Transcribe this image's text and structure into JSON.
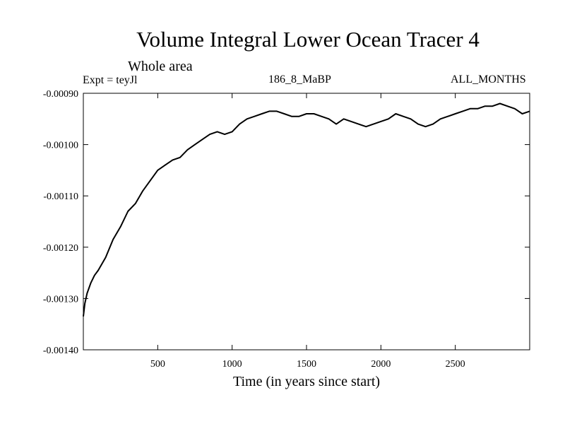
{
  "chart_data": {
    "type": "line",
    "title": "Volume Integral Lower Ocean Tracer 4",
    "subtitle": "Whole area",
    "experiment_label": "Expt = teyJl",
    "period_label": "186_8_MaBP",
    "months_label": "ALL_MONTHS",
    "xlabel": "Time (in years since start)",
    "ylabel": "",
    "xlim": [
      0,
      3000
    ],
    "ylim": [
      -0.0014,
      -0.0009
    ],
    "x_ticks": [
      500,
      1000,
      1500,
      2000,
      2500
    ],
    "x_tick_labels": [
      "500",
      "1000",
      "1500",
      "2000",
      "2500"
    ],
    "y_ticks": [
      -0.0009,
      -0.001,
      -0.0011,
      -0.0012,
      -0.0013,
      -0.0014
    ],
    "y_tick_labels": [
      "-0.00090",
      "-0.00100",
      "-0.00110",
      "-0.00120",
      "-0.00130",
      "-0.00140"
    ],
    "series": [
      {
        "name": "Lower Ocean Tracer 4",
        "color": "#000000",
        "x": [
          0,
          10,
          25,
          50,
          75,
          100,
          150,
          200,
          250,
          300,
          350,
          400,
          450,
          500,
          550,
          600,
          650,
          700,
          750,
          800,
          850,
          900,
          950,
          1000,
          1050,
          1100,
          1150,
          1200,
          1250,
          1300,
          1350,
          1400,
          1450,
          1500,
          1550,
          1600,
          1650,
          1700,
          1750,
          1800,
          1850,
          1900,
          1950,
          2000,
          2050,
          2100,
          2150,
          2200,
          2250,
          2300,
          2350,
          2400,
          2450,
          2500,
          2550,
          2600,
          2650,
          2700,
          2750,
          2800,
          2850,
          2900,
          2950,
          3000
        ],
        "y": [
          -0.001335,
          -0.00131,
          -0.00129,
          -0.00127,
          -0.001255,
          -0.001245,
          -0.00122,
          -0.001185,
          -0.00116,
          -0.00113,
          -0.001115,
          -0.00109,
          -0.00107,
          -0.00105,
          -0.00104,
          -0.00103,
          -0.001025,
          -0.00101,
          -0.001,
          -0.00099,
          -0.00098,
          -0.000975,
          -0.00098,
          -0.000975,
          -0.00096,
          -0.00095,
          -0.000945,
          -0.00094,
          -0.000935,
          -0.000935,
          -0.00094,
          -0.000945,
          -0.000945,
          -0.00094,
          -0.00094,
          -0.000945,
          -0.00095,
          -0.00096,
          -0.00095,
          -0.000955,
          -0.00096,
          -0.000965,
          -0.00096,
          -0.000955,
          -0.00095,
          -0.00094,
          -0.000945,
          -0.00095,
          -0.00096,
          -0.000965,
          -0.00096,
          -0.00095,
          -0.000945,
          -0.00094,
          -0.000935,
          -0.00093,
          -0.00093,
          -0.000925,
          -0.000925,
          -0.00092,
          -0.000925,
          -0.00093,
          -0.00094,
          -0.000935
        ]
      }
    ]
  }
}
